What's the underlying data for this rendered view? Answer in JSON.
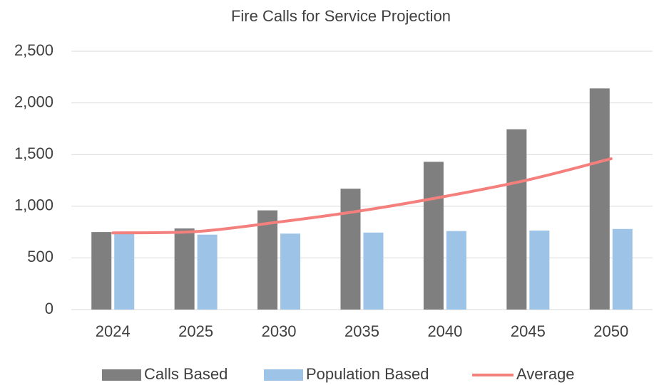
{
  "chart_data": {
    "type": "bar-line",
    "title": "Fire Calls for Service Projection",
    "categories": [
      "2024",
      "2025",
      "2030",
      "2035",
      "2040",
      "2045",
      "2050"
    ],
    "series": [
      {
        "name": "Calls Based",
        "type": "bar",
        "color": "#7f7f7f",
        "values": [
          750,
          785,
          960,
          1170,
          1430,
          1745,
          2140
        ]
      },
      {
        "name": "Population Based",
        "type": "bar",
        "color": "#9dc3e6",
        "values": [
          735,
          725,
          735,
          745,
          760,
          765,
          780
        ]
      },
      {
        "name": "Average",
        "type": "line",
        "color": "#f4807d",
        "values": [
          742.5,
          755,
          847.5,
          957.5,
          1095,
          1255,
          1460
        ]
      }
    ],
    "ylim": [
      0,
      2500
    ],
    "yticks": [
      0,
      500,
      {
        "value": 1000,
        "label": "1,000"
      },
      {
        "value": 1500,
        "label": "1,500"
      },
      {
        "value": 2000,
        "label": "2,000"
      },
      {
        "value": 2500,
        "label": "2,500"
      }
    ],
    "grid": true,
    "legend": "bottom"
  }
}
